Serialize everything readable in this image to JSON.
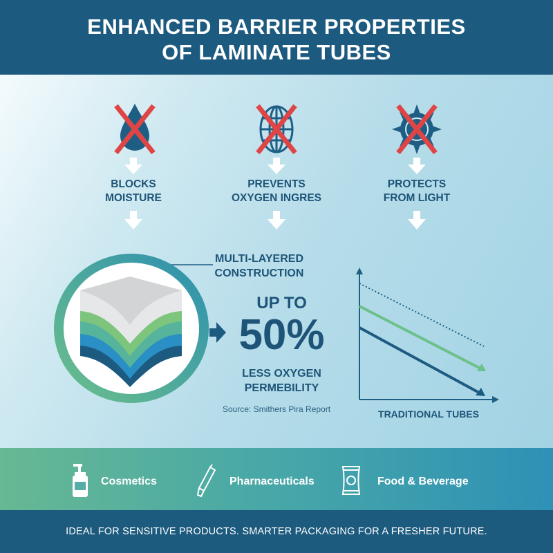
{
  "header": {
    "title_line1": "ENHANCED BARRIER PROPERTIES",
    "title_line2": "OF LAMINATE TUBES"
  },
  "features": [
    {
      "icon": "water-drop-crossed-icon",
      "line1": "BLOCKS",
      "line2": "MOISTURE"
    },
    {
      "icon": "globe-crossed-icon",
      "line1": "PREVENTS",
      "line2": "OXYGEN INGRES"
    },
    {
      "icon": "sun-crossed-icon",
      "line1": "PROTECTS",
      "line2": "FROM LIGHT"
    }
  ],
  "construction": {
    "label_line1": "MULTI-LAYERED",
    "label_line2": "CONSTRUCTION"
  },
  "stat": {
    "prefix": "UP TO",
    "value": "50%",
    "line1": "LESS OXYGEN",
    "line2": "PERMEBILITY",
    "source": "Source: Smithers Pira Report"
  },
  "comparison": {
    "xlabel": "TRADITIONAL TUBES"
  },
  "categories": [
    {
      "icon": "pump-bottle-icon",
      "label": "Cosmetics"
    },
    {
      "icon": "tube-icon",
      "label": "Pharnaceuticals"
    },
    {
      "icon": "food-pouch-icon",
      "label": "Food & Beverage"
    }
  ],
  "footer": {
    "tagline": "IDEAL FOR SENSITIVE PRODUCTS. SMARTER PACKAGING FOR A FRESHER FUTURE."
  },
  "colors": {
    "navy": "#1c5a80",
    "cross_red": "#e04545",
    "green": "#6cc08a",
    "teal": "#2e91b6"
  }
}
